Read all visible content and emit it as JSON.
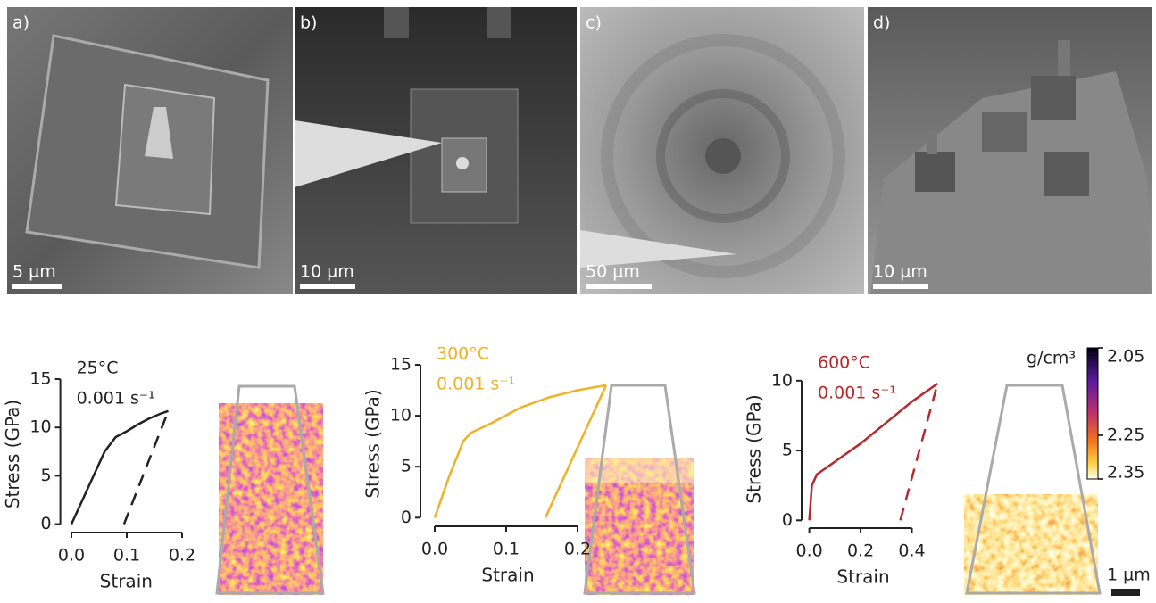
{
  "panels": [
    {
      "label": "a)",
      "scale": "5 µm"
    },
    {
      "label": "b)",
      "scale": "10 µm"
    },
    {
      "label": "c)",
      "scale": "50 µm"
    },
    {
      "label": "d)",
      "scale": "10 µm"
    }
  ],
  "chart_data": [
    {
      "type": "line",
      "x_label": "Strain",
      "y_label": "Stress (GPa)",
      "annotations": [
        "25°C",
        "0.001 s⁻¹"
      ],
      "xlim": [
        -0.02,
        0.25
      ],
      "xticks": [
        {
          "value": 0,
          "label": "0.0"
        },
        0.1,
        0.2
      ],
      "ylim": [
        -0.5,
        15
      ],
      "yticks": [
        0,
        5,
        10,
        15
      ],
      "series": [
        {
          "color": "#222222",
          "style": "solid",
          "x": [
            0,
            0.02,
            0.04,
            0.06,
            0.08,
            0.1,
            0.12,
            0.14,
            0.16,
            0.175
          ],
          "values": [
            0,
            2.5,
            5,
            7.5,
            9,
            9.6,
            10.3,
            10.9,
            11.4,
            11.7
          ]
        },
        {
          "color": "#222222",
          "style": "dashed",
          "x": [
            0.095,
            0.175
          ],
          "values": [
            0,
            11.7
          ]
        }
      ]
    },
    {
      "type": "line",
      "x_label": "Strain",
      "y_label": "Stress (GPa)",
      "annotations": [
        "300°C",
        "0.001 s⁻¹"
      ],
      "xlim": [
        -0.02,
        0.25
      ],
      "xticks": [
        {
          "value": 0,
          "label": "0.0"
        },
        0.1,
        0.2
      ],
      "ylim": [
        -0.5,
        15
      ],
      "yticks": [
        0,
        5,
        10,
        15
      ],
      "series": [
        {
          "color": "#efb226",
          "style": "solid",
          "x": [
            0,
            0.02,
            0.04,
            0.05,
            0.08,
            0.12,
            0.16,
            0.2,
            0.24
          ],
          "values": [
            0,
            4,
            7.5,
            8.3,
            9.3,
            10.8,
            11.8,
            12.5,
            13
          ]
        },
        {
          "color": "#efb226",
          "style": "solid",
          "x": [
            0.155,
            0.24
          ],
          "values": [
            0,
            13
          ]
        }
      ]
    },
    {
      "type": "line",
      "x_label": "Strain",
      "y_label": "Stress (GPa)",
      "annotations": [
        "600°C",
        "0.001 s⁻¹"
      ],
      "xlim": [
        -0.03,
        0.52
      ],
      "xticks": [
        {
          "value": 0,
          "label": "0.0"
        },
        0.2,
        0.4
      ],
      "ylim": [
        -0.3,
        10.5
      ],
      "yticks": [
        0,
        5,
        10
      ],
      "series": [
        {
          "color": "#b8282c",
          "style": "solid",
          "x": [
            0,
            0.01,
            0.03,
            0.1,
            0.2,
            0.3,
            0.4,
            0.5
          ],
          "values": [
            0,
            2.5,
            3.3,
            4.2,
            5.5,
            7,
            8.5,
            9.8
          ]
        },
        {
          "color": "#b8282c",
          "style": "dashed",
          "x": [
            0.355,
            0.5
          ],
          "values": [
            0,
            9.8
          ]
        }
      ]
    }
  ],
  "colorbar": {
    "label": "g/cm³",
    "lim": [
      2.05,
      2.35
    ],
    "ticks": [
      2.05,
      2.25,
      2.35
    ]
  },
  "scale_bar": "1 µm"
}
